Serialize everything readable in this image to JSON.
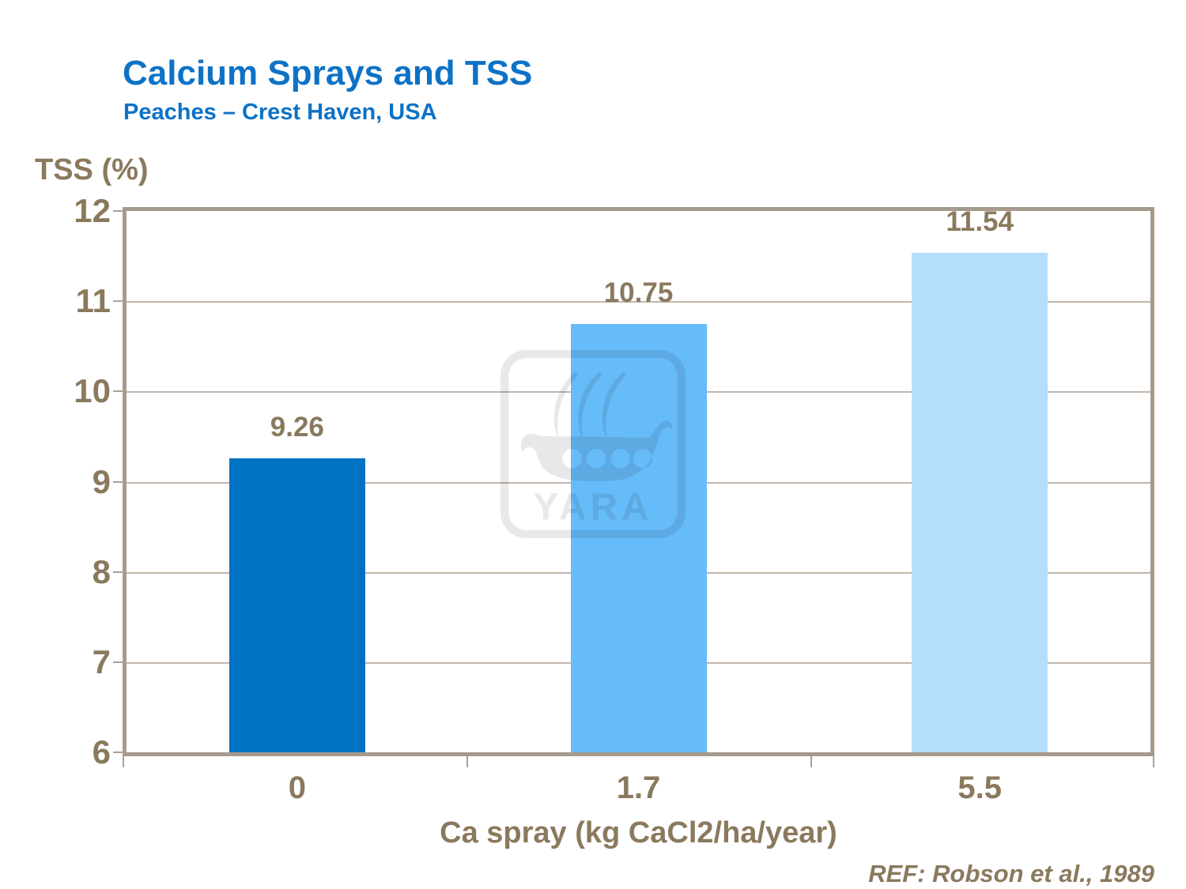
{
  "slide": {
    "title": "Calcium Sprays and TSS",
    "subtitle": "Peaches  – Crest Haven, USA",
    "reference": "REF: Robson et al., 1989",
    "watermark_text": "YARA"
  },
  "chart_data": {
    "type": "bar",
    "title": "Calcium Sprays and TSS",
    "subtitle": "Peaches – Crest Haven, USA",
    "categories": [
      "0",
      "1.7",
      "5.5"
    ],
    "values": [
      9.26,
      10.75,
      11.54
    ],
    "value_labels": [
      "9.26",
      "10.75",
      "11.54"
    ],
    "xlabel": "Ca spray (kg CaCl2/ha/year)",
    "ylabel": "TSS (%)",
    "ylim": [
      6,
      12
    ],
    "yticks": [
      6,
      7,
      8,
      9,
      10,
      11,
      12
    ],
    "grid": "horizontal",
    "legend": "none",
    "bar_colors": [
      "#0072C4",
      "#66BBF9",
      "#B5DEFC"
    ]
  },
  "colors": {
    "title_blue": "#0D72C6",
    "text_brown": "#8A795D",
    "axis_frame": "#A79A8D",
    "gridline": "#C2B6AA",
    "watermark_gray": "#E8E8E8",
    "background": "#FFFFFF"
  }
}
